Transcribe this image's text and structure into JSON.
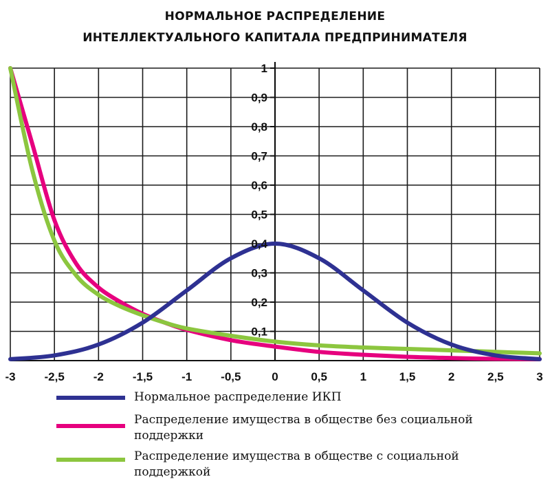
{
  "chart_data": {
    "type": "line",
    "title_line1": "НОРМАЛЬНОЕ РАСПРЕДЕЛЕНИЕ",
    "title_line2": "ИНТЕЛЛЕКТУАЛЬНОГО КАПИТАЛА ПРЕДПРИНИМАТЕЛЯ",
    "xlim": [
      -3,
      3
    ],
    "ylim": [
      0,
      1
    ],
    "grid": true,
    "x_ticks": [
      -3,
      -2.5,
      -2,
      -1.5,
      -1,
      -0.5,
      0,
      0.5,
      1,
      1.5,
      2,
      2.5,
      3
    ],
    "x_tick_labels": [
      "-3",
      "-2,5",
      "-2",
      "-1,5",
      "-1",
      "-0,5",
      "0",
      "0,5",
      "1",
      "1,5",
      "2",
      "2,5",
      "3"
    ],
    "y_ticks": [
      0.1,
      0.2,
      0.3,
      0.4,
      0.5,
      0.6,
      0.7,
      0.8,
      0.9,
      1
    ],
    "y_tick_labels": [
      "0,1",
      "0,2",
      "0,3",
      "0,4",
      "0,5",
      "0,6",
      "0,7",
      "0,8",
      "0,9",
      "1"
    ],
    "legend_position": "bottom",
    "series": [
      {
        "name": "Нормальное распределение ИКП",
        "color": "#2e3192",
        "x": [
          -3,
          -2.5,
          -2,
          -1.5,
          -1,
          -0.5,
          0,
          0.5,
          1,
          1.5,
          2,
          2.5,
          3
        ],
        "y": [
          0.005,
          0.018,
          0.055,
          0.13,
          0.24,
          0.35,
          0.4,
          0.35,
          0.24,
          0.13,
          0.055,
          0.018,
          0.005
        ]
      },
      {
        "name": "Распределение имущества в обществе без социальной поддержки",
        "color": "#e6007e",
        "x": [
          -3,
          -2.75,
          -2.5,
          -2.25,
          -2,
          -1.75,
          -1.5,
          -1.25,
          -1,
          -0.5,
          0,
          0.5,
          1,
          1.5,
          2,
          2.5,
          3
        ],
        "y": [
          1.0,
          0.74,
          0.48,
          0.33,
          0.25,
          0.2,
          0.16,
          0.13,
          0.105,
          0.07,
          0.048,
          0.03,
          0.02,
          0.013,
          0.009,
          0.006,
          0.005
        ]
      },
      {
        "name": "Распределение имущества в обществе с социальной поддержкой",
        "color": "#8cc63f",
        "x": [
          -3,
          -2.75,
          -2.5,
          -2.25,
          -2,
          -1.75,
          -1.5,
          -1.25,
          -1,
          -0.5,
          0,
          0.5,
          1,
          1.5,
          2,
          2.5,
          3
        ],
        "y": [
          1.0,
          0.65,
          0.41,
          0.29,
          0.225,
          0.185,
          0.155,
          0.13,
          0.11,
          0.085,
          0.065,
          0.052,
          0.045,
          0.04,
          0.035,
          0.03,
          0.025
        ]
      }
    ]
  },
  "legend": [
    {
      "line1": "Нормальное распределение ИКП",
      "line2": "",
      "color": "#2e3192"
    },
    {
      "line1": "Распределение имущества в обществе без социальной",
      "line2": "поддержки",
      "color": "#e6007e"
    },
    {
      "line1": "Распределение имущества в обществе с социальной",
      "line2": "поддержкой",
      "color": "#8cc63f"
    }
  ]
}
